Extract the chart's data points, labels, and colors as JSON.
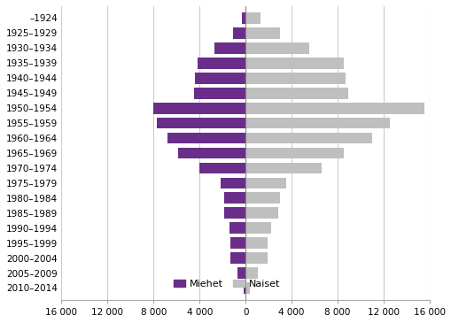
{
  "categories": [
    "–1924",
    "1925–1929",
    "1930–1934",
    "1935–1939",
    "1940–1944",
    "1945–1949",
    "1950–1954",
    "1955–1959",
    "1960–1964",
    "1965–1969",
    "1970–1974",
    "1975–1979",
    "1980–1984",
    "1985–1989",
    "1990–1994",
    "1995–1999",
    "2000–2004",
    "2005–2009",
    "2010–2014"
  ],
  "men": [
    300,
    1100,
    2700,
    4200,
    4400,
    4500,
    8000,
    7700,
    6800,
    5900,
    4000,
    2200,
    1900,
    1900,
    1400,
    1300,
    1300,
    700,
    200
  ],
  "women": [
    1300,
    3000,
    5500,
    8500,
    8700,
    8900,
    15500,
    12500,
    11000,
    8500,
    6600,
    3500,
    3000,
    2800,
    2200,
    1900,
    1900,
    1100,
    350
  ],
  "men_color": "#6a2e8a",
  "women_color": "#c0bfc0",
  "xlim": 16000,
  "xticks": [
    -16000,
    -12000,
    -8000,
    -4000,
    0,
    4000,
    8000,
    12000,
    16000
  ],
  "xticklabels": [
    "16 000",
    "12 000",
    "8 000",
    "4 000",
    "0",
    "4 000",
    "8 000",
    "12 000",
    "16 000"
  ],
  "legend_men": "Miehet",
  "legend_women": "Naiset",
  "bar_height": 0.75,
  "background_color": "#ffffff",
  "grid_color": "#cccccc"
}
